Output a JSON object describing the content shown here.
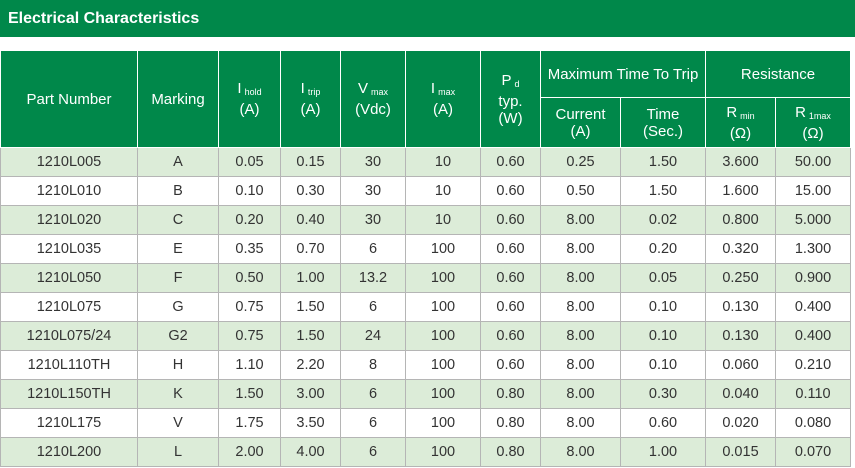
{
  "title": "Electrical Characteristics",
  "table": {
    "header": {
      "columns": [
        {
          "label": "Part Number"
        },
        {
          "label": "Marking"
        },
        {
          "symbol": "I",
          "sub": "hold",
          "unit": "(A)"
        },
        {
          "symbol": "I",
          "sub": "trip",
          "unit": "(A)"
        },
        {
          "symbol": "V",
          "sub": "max",
          "unit": "(Vdc)"
        },
        {
          "symbol": "I",
          "sub": "max",
          "unit": "(A)"
        },
        {
          "symbol": "P",
          "sub": "d",
          "note": "typ.",
          "unit": "(W)"
        }
      ],
      "groups": [
        {
          "label": "Maximum Time To Trip",
          "columns": [
            {
              "label": "Current",
              "unit": "(A)"
            },
            {
              "label": "Time",
              "unit": "(Sec.)"
            }
          ]
        },
        {
          "label": "Resistance",
          "columns": [
            {
              "symbol": "R",
              "sub": "min",
              "unit": "(Ω)"
            },
            {
              "symbol": "R",
              "sub": "1max",
              "unit": "(Ω)"
            }
          ]
        }
      ]
    },
    "rows": [
      [
        "1210L005",
        "A",
        "0.05",
        "0.15",
        "30",
        "10",
        "0.60",
        "0.25",
        "1.50",
        "3.600",
        "50.00"
      ],
      [
        "1210L010",
        "B",
        "0.10",
        "0.30",
        "30",
        "10",
        "0.60",
        "0.50",
        "1.50",
        "1.600",
        "15.00"
      ],
      [
        "1210L020",
        "C",
        "0.20",
        "0.40",
        "30",
        "10",
        "0.60",
        "8.00",
        "0.02",
        "0.800",
        "5.000"
      ],
      [
        "1210L035",
        "E",
        "0.35",
        "0.70",
        "6",
        "100",
        "0.60",
        "8.00",
        "0.20",
        "0.320",
        "1.300"
      ],
      [
        "1210L050",
        "F",
        "0.50",
        "1.00",
        "13.2",
        "100",
        "0.60",
        "8.00",
        "0.05",
        "0.250",
        "0.900"
      ],
      [
        "1210L075",
        "G",
        "0.75",
        "1.50",
        "6",
        "100",
        "0.60",
        "8.00",
        "0.10",
        "0.130",
        "0.400"
      ],
      [
        "1210L075/24",
        "G2",
        "0.75",
        "1.50",
        "24",
        "100",
        "0.60",
        "8.00",
        "0.10",
        "0.130",
        "0.400"
      ],
      [
        "1210L110TH",
        "H",
        "1.10",
        "2.20",
        "8",
        "100",
        "0.60",
        "8.00",
        "0.10",
        "0.060",
        "0.210"
      ],
      [
        "1210L150TH",
        "K",
        "1.50",
        "3.00",
        "6",
        "100",
        "0.80",
        "8.00",
        "0.30",
        "0.040",
        "0.110"
      ],
      [
        "1210L175",
        "V",
        "1.75",
        "3.50",
        "6",
        "100",
        "0.80",
        "8.00",
        "0.60",
        "0.020",
        "0.080"
      ],
      [
        "1210L200",
        "L",
        "2.00",
        "4.00",
        "6",
        "100",
        "0.80",
        "8.00",
        "1.00",
        "0.015",
        "0.070"
      ]
    ]
  }
}
